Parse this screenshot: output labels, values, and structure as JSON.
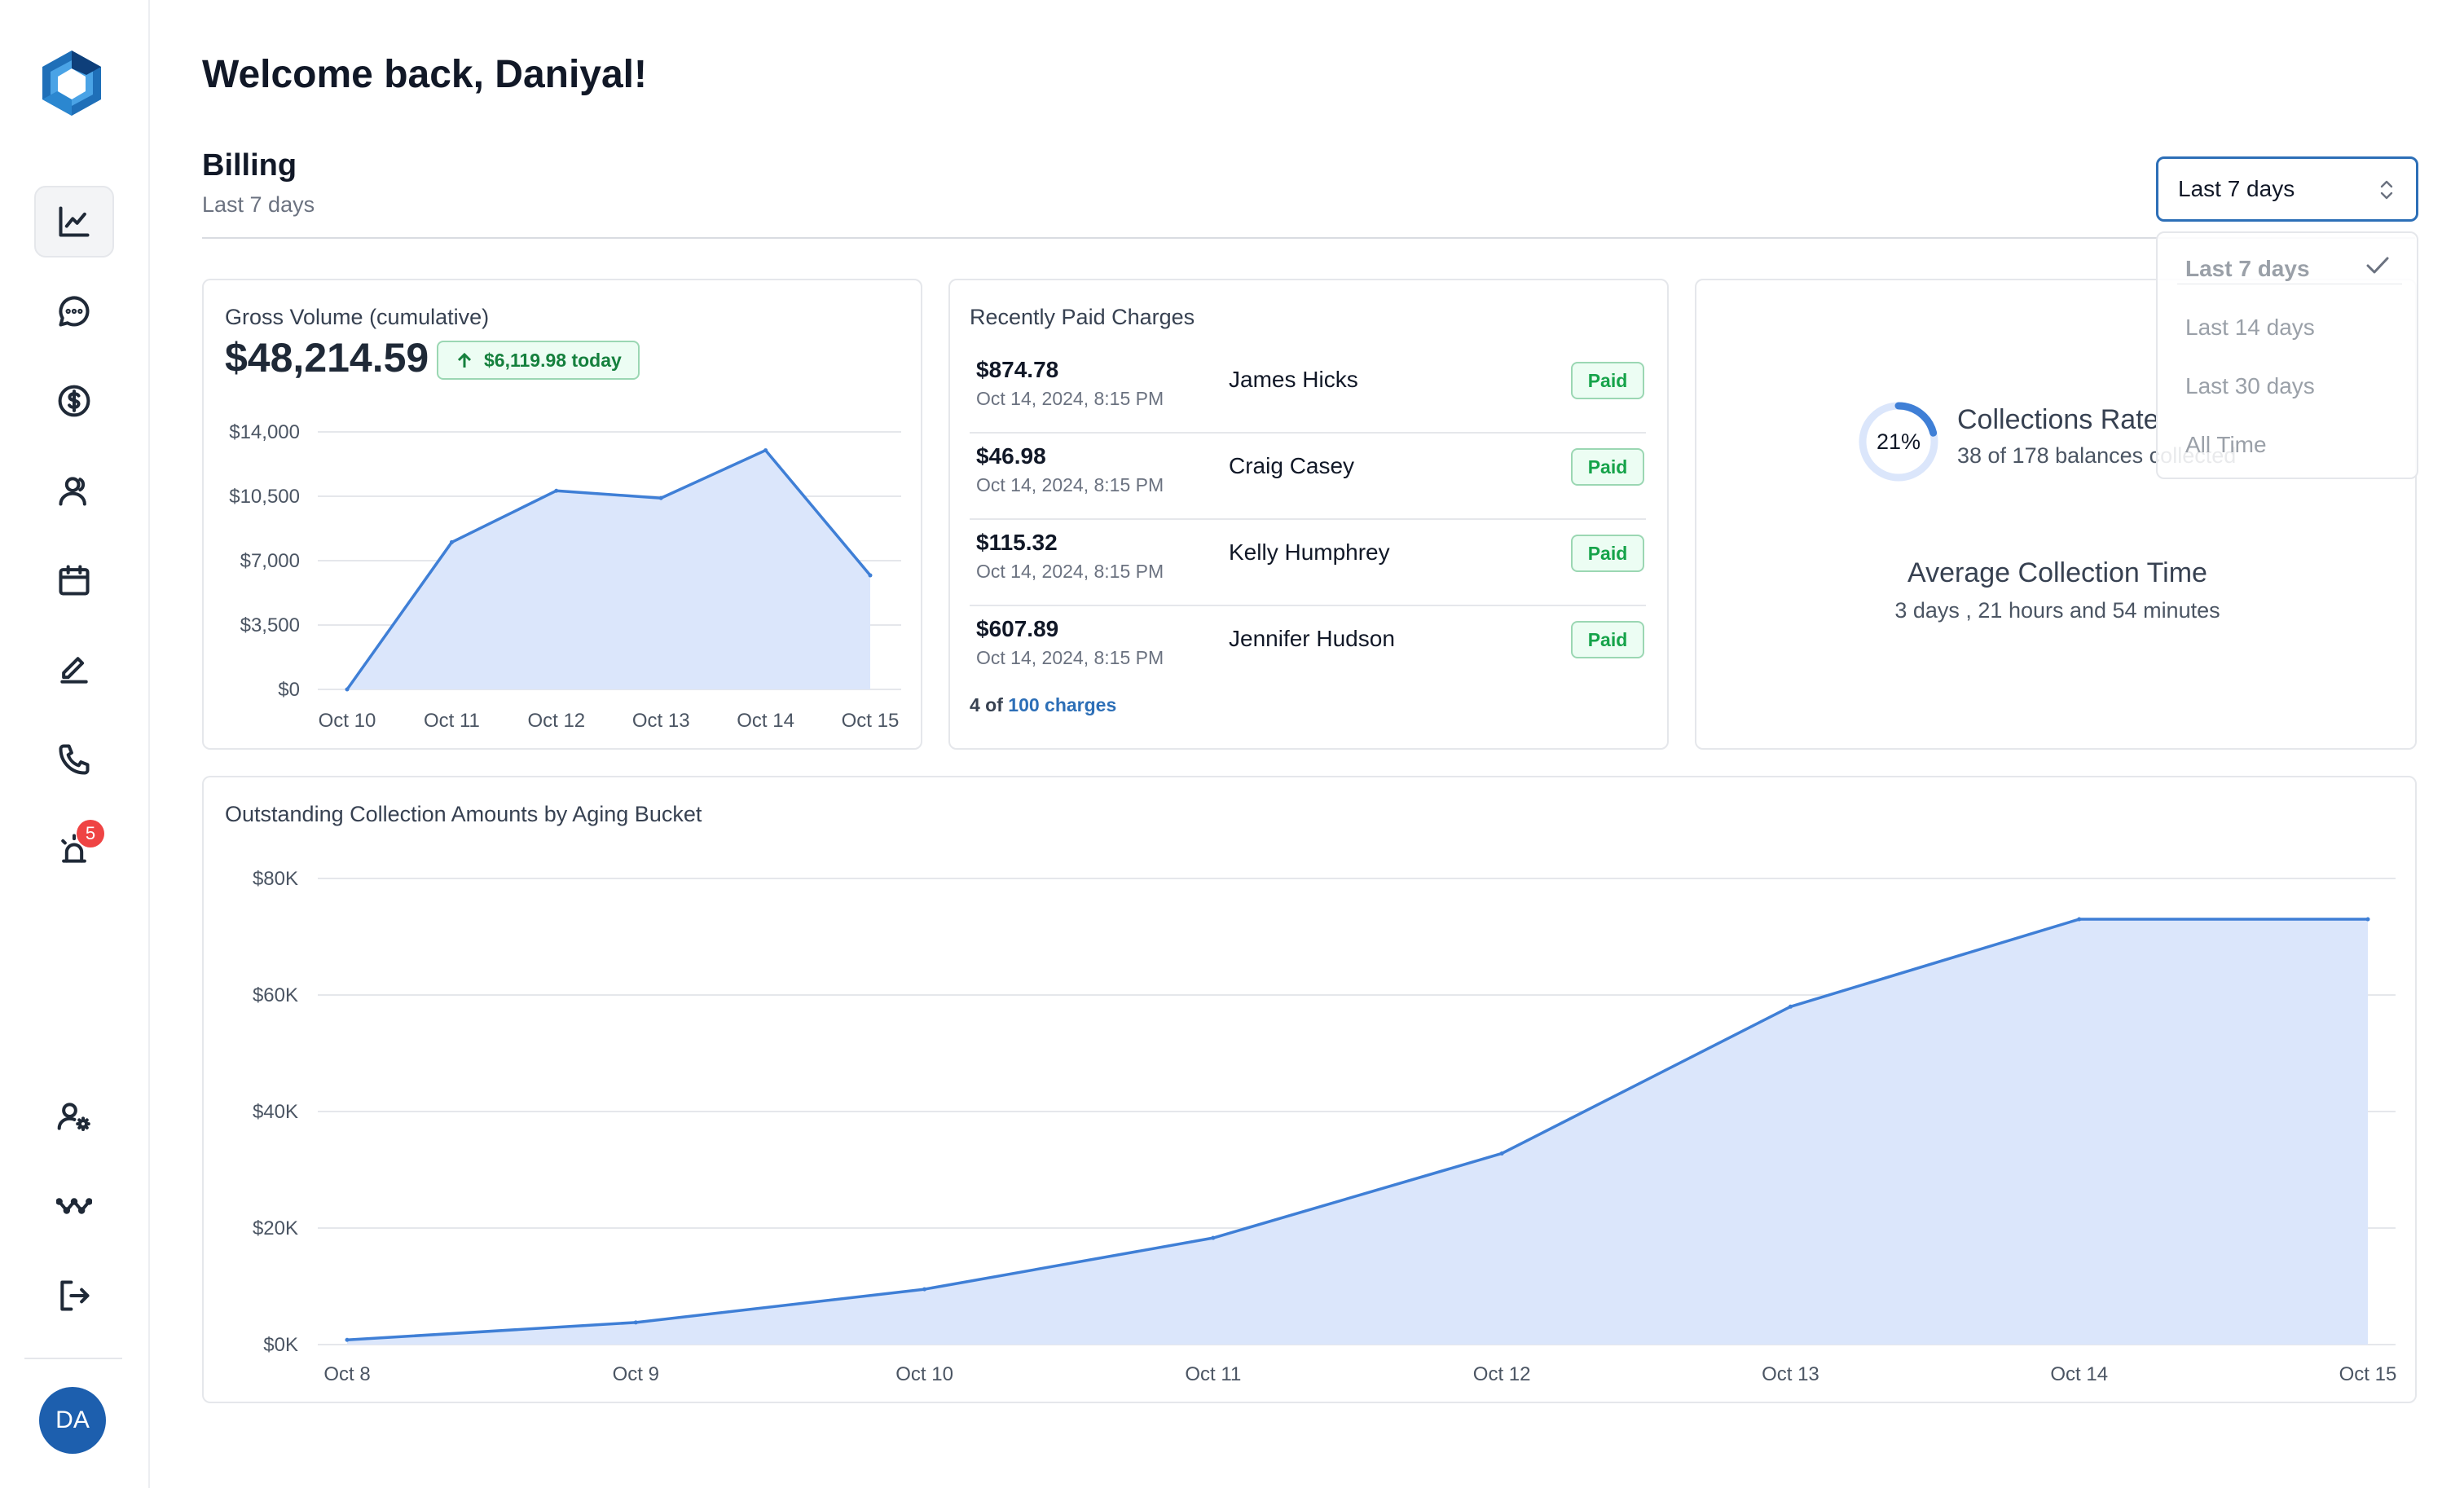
{
  "colors": {
    "accent": "#2d6fb7",
    "line": "#3f7fd6",
    "area": "#dbe6fb",
    "success": "#16a34a",
    "danger": "#ef4444"
  },
  "sidebar": {
    "items": [
      {
        "icon": "chart-line-icon",
        "active": true
      },
      {
        "icon": "chat-bubble-icon"
      },
      {
        "icon": "dollar-circle-icon"
      },
      {
        "icon": "users-icon"
      },
      {
        "icon": "calendar-icon"
      },
      {
        "icon": "pen-icon"
      },
      {
        "icon": "phone-icon"
      },
      {
        "icon": "alarm-icon",
        "badge": "5"
      }
    ],
    "bottom_items": [
      {
        "icon": "user-settings-icon"
      },
      {
        "icon": "activity-icon"
      },
      {
        "icon": "logout-icon"
      }
    ],
    "avatar_initials": "DA"
  },
  "header": {
    "welcome": "Welcome back, Daniyal!",
    "section_title": "Billing",
    "section_subtitle": "Last 7 days"
  },
  "range_select": {
    "value": "Last 7 days",
    "options": [
      "Last 7 days",
      "Last 14 days",
      "Last 30 days",
      "All Time"
    ],
    "selected_index": 0
  },
  "gross_volume": {
    "title": "Gross Volume (cumulative)",
    "amount": "$48,214.59",
    "today": "$6,119.98 today"
  },
  "recent_charges": {
    "title": "Recently Paid Charges",
    "rows": [
      {
        "amount": "$874.78",
        "date": "Oct 14, 2024, 8:15 PM",
        "name": "James Hicks",
        "status": "Paid"
      },
      {
        "amount": "$46.98",
        "date": "Oct 14, 2024, 8:15 PM",
        "name": "Craig Casey",
        "status": "Paid"
      },
      {
        "amount": "$115.32",
        "date": "Oct 14, 2024, 8:15 PM",
        "name": "Kelly Humphrey",
        "status": "Paid"
      },
      {
        "amount": "$607.89",
        "date": "Oct 14, 2024, 8:15 PM",
        "name": "Jennifer Hudson",
        "status": "Paid"
      }
    ],
    "footer_prefix": "4 of",
    "footer_link": "100 charges"
  },
  "collections": {
    "rate_percent": 21,
    "rate_label": "21%",
    "title": "Collections Rate",
    "subtitle": "38 of 178 balances collected",
    "avg_title": "Average Collection Time",
    "avg_value": "3 days , 21 hours and 54 minutes"
  },
  "aging": {
    "title": "Outstanding Collection Amounts by Aging Bucket"
  },
  "chart_data": [
    {
      "type": "area",
      "categories": [
        "Oct 10",
        "Oct 11",
        "Oct 12",
        "Oct 13",
        "Oct 14",
        "Oct 15"
      ],
      "values": [
        0,
        8000,
        10800,
        10400,
        13000,
        6200
      ],
      "y_ticks": [
        "$0",
        "$3,500",
        "$7,000",
        "$10,500",
        "$14,000"
      ],
      "ylim": [
        0,
        14000
      ],
      "grid": true
    },
    {
      "type": "area",
      "categories": [
        "Oct 8",
        "Oct 9",
        "Oct 10",
        "Oct 11",
        "Oct 12",
        "Oct 13",
        "Oct 14",
        "Oct 15"
      ],
      "values": [
        800,
        3800,
        9500,
        18300,
        32800,
        58000,
        73000,
        73000
      ],
      "y_ticks": [
        "$0K",
        "$20K",
        "$40K",
        "$60K",
        "$80K"
      ],
      "ylim": [
        0,
        80000
      ],
      "grid": true
    }
  ]
}
